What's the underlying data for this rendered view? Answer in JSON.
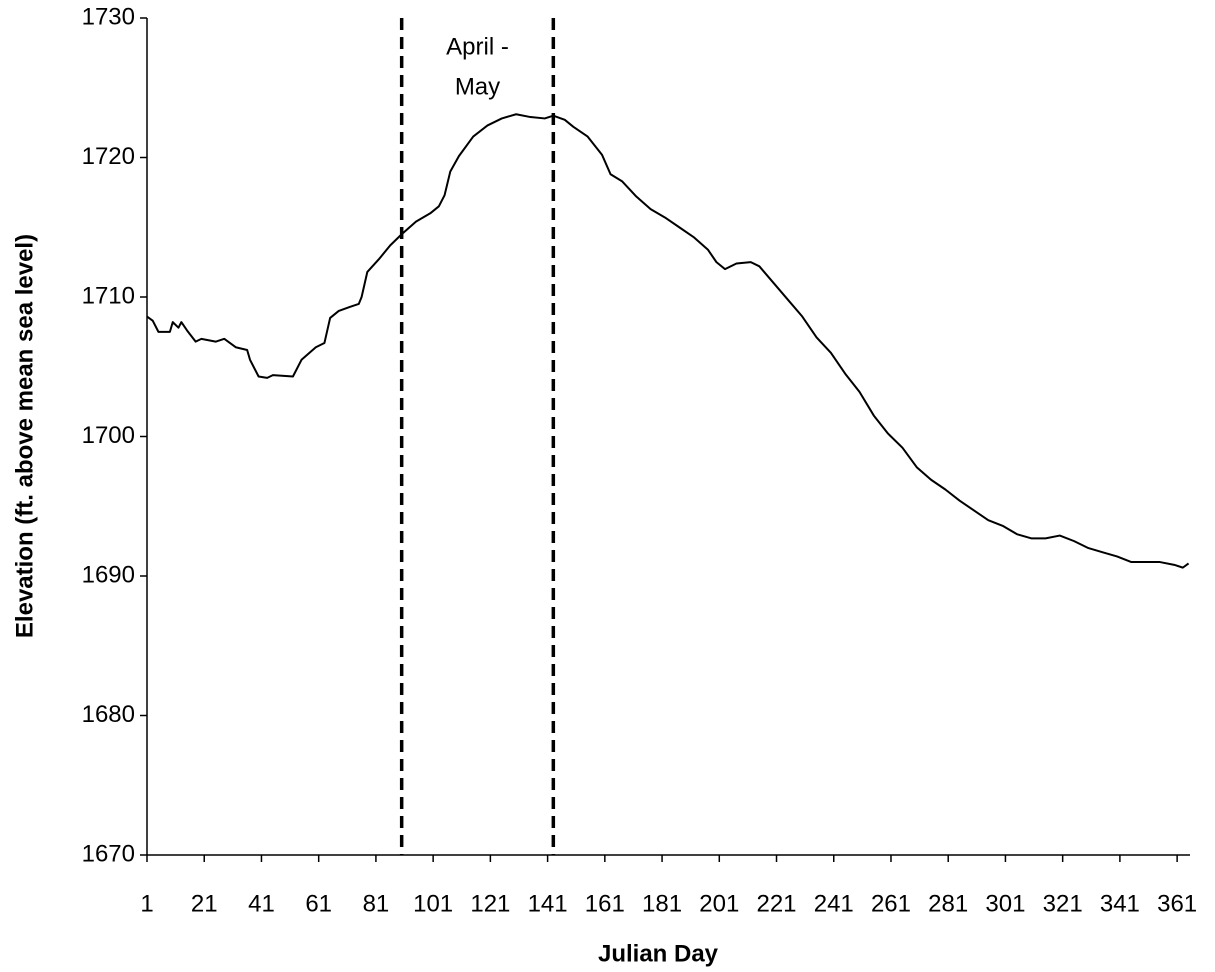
{
  "chart_data": {
    "type": "line",
    "xlabel": "Julian Day",
    "ylabel": "Elevation (ft. above mean sea level)",
    "annotation": [
      "April -",
      "May"
    ],
    "vlines": [
      90,
      143
    ],
    "x": [
      1,
      3,
      5,
      9,
      10,
      12,
      13,
      15,
      18,
      20,
      25,
      28,
      32,
      36,
      37,
      40,
      43,
      45,
      52,
      55,
      60,
      63,
      65,
      68,
      72,
      75,
      76,
      78,
      82,
      86,
      90,
      95,
      100,
      103,
      105,
      107,
      110,
      115,
      120,
      125,
      130,
      135,
      140,
      143,
      147,
      150,
      155,
      160,
      163,
      167,
      172,
      177,
      182,
      187,
      192,
      197,
      200,
      203,
      207,
      212,
      215,
      220,
      225,
      230,
      235,
      240,
      245,
      250,
      255,
      260,
      265,
      270,
      275,
      280,
      285,
      290,
      295,
      300,
      305,
      310,
      315,
      320,
      325,
      330,
      335,
      340,
      345,
      350,
      355,
      360,
      363,
      365
    ],
    "series": [
      {
        "color": "#000000",
        "values": [
          1708.6,
          1708.3,
          1707.5,
          1707.5,
          1708.2,
          1707.8,
          1708.2,
          1707.6,
          1706.8,
          1707.0,
          1706.8,
          1707.0,
          1706.4,
          1706.2,
          1705.5,
          1704.3,
          1704.2,
          1704.4,
          1704.3,
          1705.5,
          1706.4,
          1706.7,
          1708.5,
          1709.0,
          1709.3,
          1709.5,
          1710.0,
          1711.8,
          1712.7,
          1713.7,
          1714.5,
          1715.4,
          1716.0,
          1716.5,
          1717.3,
          1719.0,
          1720.1,
          1721.5,
          1722.3,
          1722.8,
          1723.1,
          1722.9,
          1722.8,
          1723.0,
          1722.7,
          1722.2,
          1721.5,
          1720.2,
          1718.8,
          1718.3,
          1717.2,
          1716.3,
          1715.7,
          1715.0,
          1714.3,
          1713.4,
          1712.5,
          1712.0,
          1712.4,
          1712.5,
          1712.2,
          1711.0,
          1709.8,
          1708.6,
          1707.1,
          1706.0,
          1704.5,
          1703.2,
          1701.5,
          1700.2,
          1699.2,
          1697.8,
          1696.9,
          1696.2,
          1695.4,
          1694.7,
          1694.0,
          1693.6,
          1693.0,
          1692.7,
          1692.7,
          1692.9,
          1692.5,
          1692.0,
          1691.7,
          1691.4,
          1691.0,
          1691.0,
          1691.0,
          1690.8,
          1690.6,
          1690.9
        ]
      }
    ],
    "xlim": [
      1,
      365.5
    ],
    "xticks": [
      1,
      21,
      41,
      61,
      81,
      101,
      121,
      141,
      161,
      181,
      201,
      221,
      241,
      261,
      281,
      301,
      321,
      341,
      361
    ],
    "ylim": [
      1670,
      1730
    ],
    "yticks": [
      1670,
      1680,
      1690,
      1700,
      1710,
      1720,
      1730
    ]
  }
}
